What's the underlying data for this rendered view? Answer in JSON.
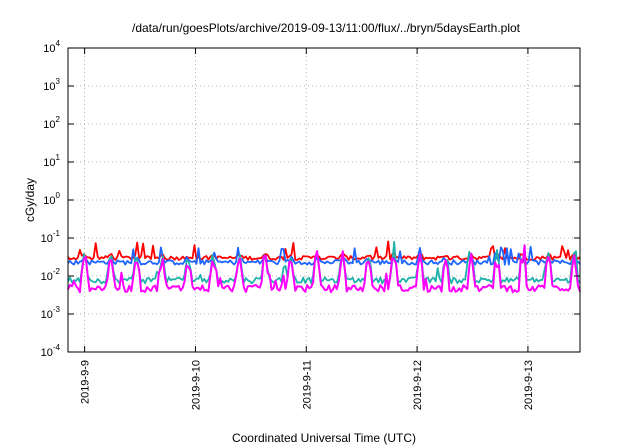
{
  "chart_data": {
    "type": "line",
    "title": "/data/run/goesPlots/archive/2019-09-13/11:00/flux/../bryn/5daysEarth.plot",
    "xlabel": "Coordinated Universal Time (UTC)",
    "ylabel": "cGy/day",
    "yscale": "log",
    "ylim": [
      0.0001,
      10000
    ],
    "y_tick_exponents": [
      "-4",
      "-3",
      "-2",
      "-1",
      "0",
      "1",
      "2",
      "3",
      "4"
    ],
    "y_tick_base": "10",
    "x_range_days": [
      8.85,
      13.47
    ],
    "x_ticks": [
      {
        "value": 9,
        "label": "2019-9-9"
      },
      {
        "value": 10,
        "label": "2019-9-10"
      },
      {
        "value": 11,
        "label": "2019-9-11"
      },
      {
        "value": 12,
        "label": "2019-9-12"
      },
      {
        "value": 13,
        "label": "2019-9-13"
      }
    ],
    "grid": true,
    "series": [
      {
        "color": "#ff0000",
        "base": 0.03,
        "amp": 0.022,
        "jitter": 0.12
      },
      {
        "color": "#1e64ff",
        "base": 0.023,
        "amp": 0.025,
        "jitter": 0.14
      },
      {
        "color": "#20b2aa",
        "base": 0.0078,
        "amp": 0.03,
        "jitter": 0.18
      },
      {
        "color": "#ff00ff",
        "base": 0.0048,
        "amp": 0.032,
        "jitter": 0.22
      }
    ]
  }
}
